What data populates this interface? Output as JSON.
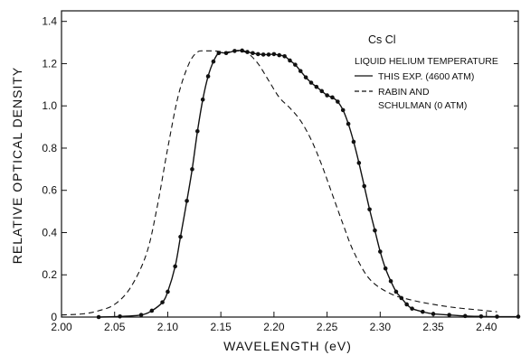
{
  "chart_data": {
    "type": "line",
    "xlabel": "WAVELENGTH (eV)",
    "ylabel": "RELATIVE OPTICAL DENSITY",
    "xlim": [
      2.0,
      2.43
    ],
    "ylim": [
      0,
      1.45
    ],
    "x_ticks": [
      "2.00",
      "2.05",
      "2.10",
      "2.15",
      "2.20",
      "2.25",
      "2.30",
      "2.35",
      "2.40"
    ],
    "y_ticks": [
      "0",
      "0.2",
      "0.4",
      "0.6",
      "0.8",
      "1.0",
      "1.2",
      "1.4"
    ],
    "grid": false,
    "legend": {
      "position": "top-right",
      "title": "Cs Cl",
      "subtitle": "LIQUID HELIUM TEMPERATURE",
      "entries": [
        "THIS EXP. (4600 ATM)",
        "RABIN AND",
        "SCHULMAN (0 ATM)"
      ]
    },
    "series": [
      {
        "name": "THIS EXP. (4600 ATM)",
        "style": "solid",
        "markers": true,
        "x": [
          2.035,
          2.055,
          2.075,
          2.085,
          2.095,
          2.1,
          2.107,
          2.112,
          2.118,
          2.123,
          2.128,
          2.133,
          2.138,
          2.143,
          2.148,
          2.155,
          2.163,
          2.17,
          2.175,
          2.18,
          2.185,
          2.19,
          2.195,
          2.2,
          2.205,
          2.21,
          2.215,
          2.22,
          2.225,
          2.23,
          2.235,
          2.24,
          2.245,
          2.25,
          2.255,
          2.26,
          2.265,
          2.27,
          2.275,
          2.28,
          2.285,
          2.29,
          2.295,
          2.3,
          2.305,
          2.31,
          2.315,
          2.32,
          2.325,
          2.33,
          2.34,
          2.35,
          2.365,
          2.38,
          2.395,
          2.41,
          2.43
        ],
        "y": [
          0.0,
          0.003,
          0.01,
          0.03,
          0.07,
          0.12,
          0.24,
          0.38,
          0.55,
          0.7,
          0.88,
          1.03,
          1.14,
          1.21,
          1.25,
          1.25,
          1.26,
          1.262,
          1.255,
          1.25,
          1.245,
          1.243,
          1.243,
          1.245,
          1.24,
          1.235,
          1.215,
          1.195,
          1.165,
          1.135,
          1.11,
          1.09,
          1.07,
          1.05,
          1.04,
          1.02,
          0.98,
          0.915,
          0.83,
          0.73,
          0.62,
          0.51,
          0.41,
          0.31,
          0.23,
          0.17,
          0.12,
          0.09,
          0.06,
          0.04,
          0.025,
          0.015,
          0.01,
          0.005,
          0.003,
          0.002,
          0.002
        ]
      },
      {
        "name": "RABIN AND SCHULMAN (0 ATM)",
        "style": "dashed",
        "markers": false,
        "x": [
          2.0,
          2.02,
          2.035,
          2.05,
          2.065,
          2.08,
          2.09,
          2.1,
          2.11,
          2.12,
          2.128,
          2.135,
          2.145,
          2.155,
          2.165,
          2.175,
          2.185,
          2.195,
          2.205,
          2.215,
          2.225,
          2.235,
          2.245,
          2.255,
          2.265,
          2.275,
          2.29,
          2.31,
          2.33,
          2.35,
          2.37,
          2.39,
          2.4,
          2.41
        ],
        "y": [
          0.01,
          0.015,
          0.03,
          0.06,
          0.14,
          0.3,
          0.52,
          0.8,
          1.05,
          1.2,
          1.255,
          1.26,
          1.26,
          1.255,
          1.26,
          1.25,
          1.2,
          1.12,
          1.04,
          0.99,
          0.93,
          0.84,
          0.72,
          0.58,
          0.44,
          0.31,
          0.18,
          0.11,
          0.08,
          0.06,
          0.045,
          0.035,
          0.03,
          0.025
        ]
      }
    ]
  }
}
